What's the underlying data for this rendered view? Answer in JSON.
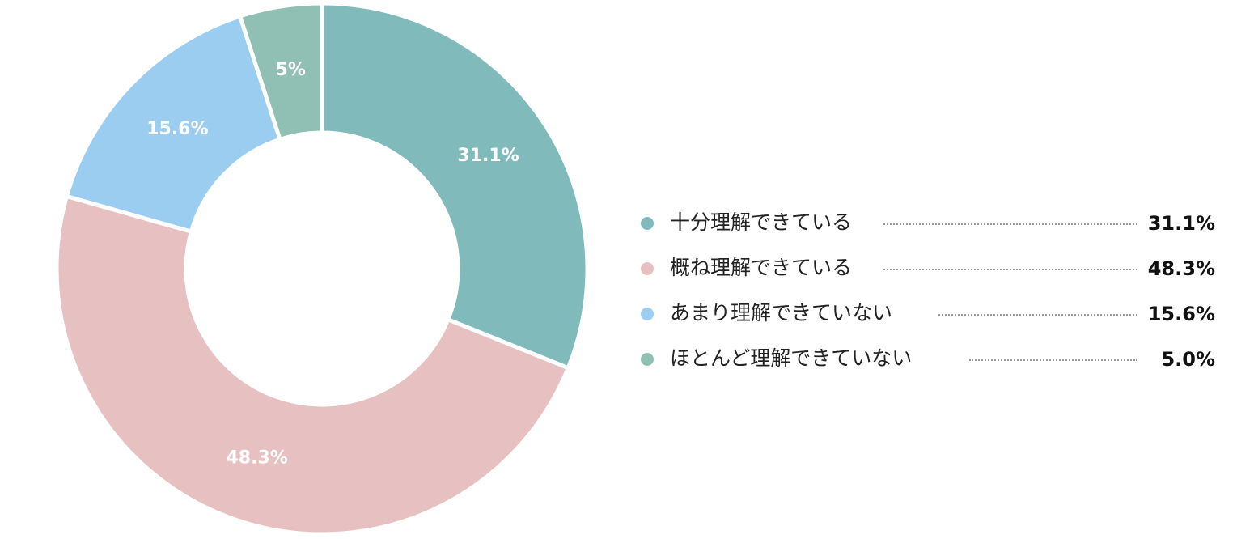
{
  "chart_data": {
    "type": "pie",
    "variant": "donut",
    "categories": [
      "十分理解できている",
      "概ね理解できている",
      "あまり理解できていない",
      "ほとんど理解できていない"
    ],
    "values": [
      31.1,
      48.3,
      15.6,
      5.0
    ],
    "unit": "%",
    "slice_labels": [
      "31.1%",
      "48.3%",
      "15.6%",
      "5%"
    ],
    "legend_values": [
      "31.1%",
      "48.3%",
      "15.6%",
      "5.0%"
    ],
    "colors": [
      "#80babb",
      "#e7c1c1",
      "#9acdf0",
      "#8fc0b3"
    ],
    "legend_position": "right",
    "start_angle": "top",
    "direction": "clockwise"
  }
}
